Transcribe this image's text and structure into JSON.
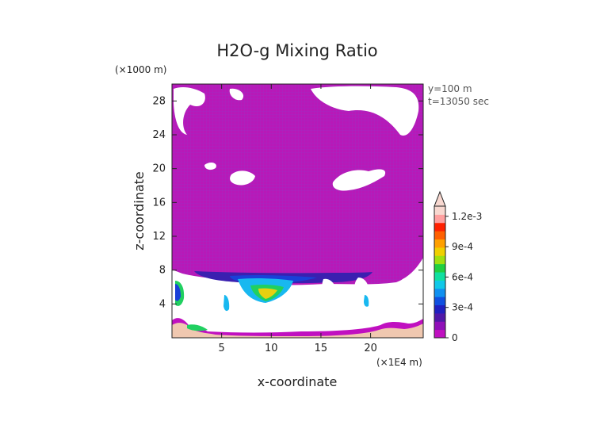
{
  "chart_data": {
    "type": "heatmap",
    "title": "H2O-g Mixing Ratio",
    "xlabel": "x-coordinate",
    "ylabel": "z-coordinate",
    "x_unit": "(×1E4 m)",
    "y_unit": "(×1000 m)",
    "annotations": [
      "y=100 m",
      "t=13050 sec"
    ],
    "x_ticks": [
      5,
      10,
      15,
      20
    ],
    "y_ticks": [
      4,
      8,
      12,
      16,
      20,
      24,
      28
    ],
    "xlim": [
      0,
      25.3
    ],
    "ylim": [
      0,
      30
    ],
    "colorbar": {
      "labels": [
        "0",
        "3e-4",
        "6e-4",
        "9e-4",
        "1.2e-3"
      ],
      "label_values": [
        0,
        0.0003,
        0.0006,
        0.0009,
        0.0012
      ],
      "range": [
        0,
        0.0013
      ],
      "colors": [
        "#c010c0",
        "#9010b8",
        "#5018a8",
        "#2020c0",
        "#1050e0",
        "#1090f0",
        "#10c8e8",
        "#10e0a0",
        "#20d040",
        "#a0e010",
        "#f0d000",
        "#ffa000",
        "#ff6000",
        "#ff2000",
        "#ffa0a0",
        "#f8d8d0"
      ]
    },
    "field_description_values": {
      "lower_layer_top_km": 8.8,
      "upper_layer_top_km": 30,
      "max_value_region_km": [
        8,
        4
      ]
    }
  }
}
